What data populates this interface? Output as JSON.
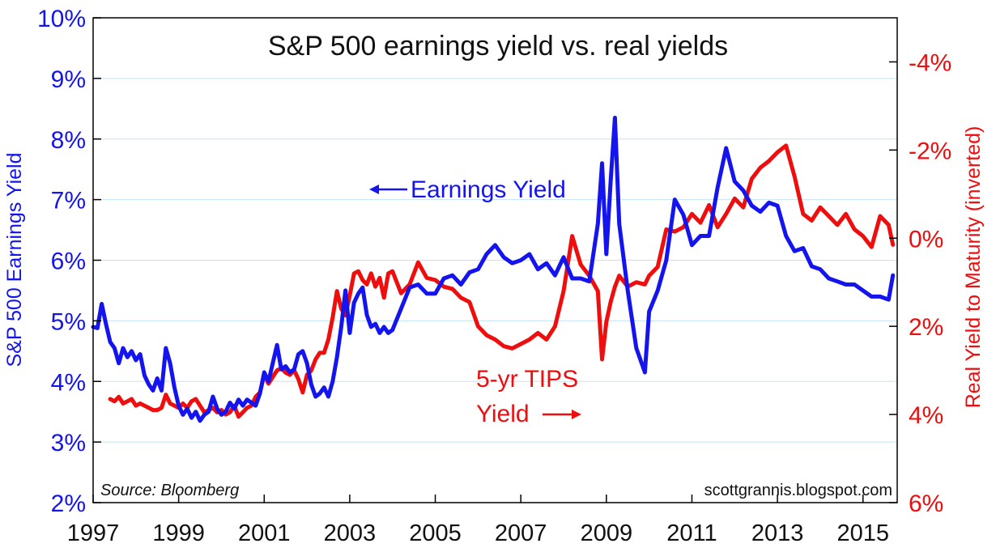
{
  "chart_data": {
    "type": "line",
    "title": "S&P 500 earnings yield vs. real yields",
    "xlabel": "",
    "ylabel": "S&P 500 Earnings Yield",
    "ylabel_right": "Real Yield to Maturity (inverted)",
    "xlim": [
      1997.0,
      2015.8
    ],
    "ylim": [
      2,
      10
    ],
    "ylim_right": [
      6,
      -5
    ],
    "right_axis_inverted": true,
    "x_ticks": [
      "1997",
      "1999",
      "2001",
      "2003",
      "2005",
      "2007",
      "2009",
      "2011",
      "2013",
      "2015"
    ],
    "y_ticks": [
      "2%",
      "3%",
      "4%",
      "5%",
      "6%",
      "7%",
      "8%",
      "9%",
      "10%"
    ],
    "y_ticks_right": [
      "6%",
      "4%",
      "2%",
      "0%",
      "-2%",
      "-4%"
    ],
    "source": "Source: Bloomberg",
    "watermark": "scottgrannis.blogspot.com",
    "colors": {
      "earnings": "#1414ee",
      "tips": "#ee0e0e",
      "grid": "#c5e3f2",
      "frame": "#000000"
    },
    "series": [
      {
        "name": "Earnings Yield",
        "axis": "left",
        "label": "Earnings Yield",
        "x": [
          1997.0,
          1997.1,
          1997.2,
          1997.3,
          1997.4,
          1997.5,
          1997.6,
          1997.7,
          1997.8,
          1997.9,
          1998.0,
          1998.1,
          1998.2,
          1998.3,
          1998.4,
          1998.5,
          1998.6,
          1998.7,
          1998.8,
          1998.9,
          1999.0,
          1999.1,
          1999.2,
          1999.3,
          1999.4,
          1999.5,
          1999.6,
          1999.7,
          1999.8,
          1999.9,
          2000.0,
          2000.1,
          2000.2,
          2000.3,
          2000.4,
          2000.5,
          2000.6,
          2000.7,
          2000.8,
          2000.9,
          2001.0,
          2001.1,
          2001.2,
          2001.3,
          2001.4,
          2001.5,
          2001.6,
          2001.7,
          2001.8,
          2001.9,
          2002.0,
          2002.1,
          2002.2,
          2002.3,
          2002.4,
          2002.5,
          2002.6,
          2002.7,
          2002.8,
          2002.9,
          2003.0,
          2003.1,
          2003.2,
          2003.3,
          2003.4,
          2003.5,
          2003.6,
          2003.7,
          2003.8,
          2003.9,
          2004.0,
          2004.2,
          2004.4,
          2004.6,
          2004.8,
          2005.0,
          2005.2,
          2005.4,
          2005.6,
          2005.8,
          2006.0,
          2006.2,
          2006.4,
          2006.6,
          2006.8,
          2007.0,
          2007.2,
          2007.4,
          2007.6,
          2007.8,
          2008.0,
          2008.2,
          2008.4,
          2008.6,
          2008.8,
          2008.9,
          2009.0,
          2009.1,
          2009.2,
          2009.3,
          2009.5,
          2009.7,
          2009.9,
          2010.0,
          2010.2,
          2010.4,
          2010.6,
          2010.8,
          2011.0,
          2011.2,
          2011.4,
          2011.6,
          2011.8,
          2012.0,
          2012.2,
          2012.4,
          2012.6,
          2012.8,
          2013.0,
          2013.2,
          2013.4,
          2013.6,
          2013.8,
          2014.0,
          2014.2,
          2014.4,
          2014.6,
          2014.8,
          2015.0,
          2015.2,
          2015.4,
          2015.6,
          2015.7
        ],
        "values": [
          4.9,
          4.88,
          5.28,
          4.95,
          4.65,
          4.55,
          4.3,
          4.55,
          4.4,
          4.5,
          4.35,
          4.45,
          4.1,
          3.95,
          3.85,
          4.05,
          3.85,
          4.55,
          4.3,
          3.9,
          3.6,
          3.45,
          3.55,
          3.4,
          3.5,
          3.35,
          3.45,
          3.5,
          3.75,
          3.55,
          3.45,
          3.5,
          3.65,
          3.55,
          3.7,
          3.6,
          3.7,
          3.65,
          3.6,
          3.8,
          4.15,
          4.0,
          4.3,
          4.6,
          4.2,
          4.25,
          4.15,
          4.2,
          4.45,
          4.5,
          4.3,
          3.95,
          3.75,
          3.8,
          3.9,
          3.75,
          4.0,
          4.4,
          4.9,
          5.5,
          4.8,
          5.3,
          5.45,
          5.55,
          5.1,
          4.9,
          4.95,
          4.8,
          4.9,
          4.8,
          4.85,
          5.2,
          5.55,
          5.6,
          5.45,
          5.45,
          5.7,
          5.75,
          5.6,
          5.8,
          5.85,
          6.1,
          6.25,
          6.05,
          5.95,
          6.0,
          6.1,
          5.85,
          5.95,
          5.75,
          6.05,
          5.7,
          5.7,
          5.65,
          6.6,
          7.6,
          6.1,
          7.3,
          8.35,
          6.6,
          5.5,
          4.55,
          4.15,
          5.15,
          5.5,
          6.0,
          7.0,
          6.75,
          6.25,
          6.4,
          6.4,
          7.2,
          7.85,
          7.3,
          7.15,
          6.9,
          6.8,
          6.95,
          6.9,
          6.4,
          6.15,
          6.2,
          5.9,
          5.85,
          5.7,
          5.65,
          5.6,
          5.6,
          5.5,
          5.4,
          5.4,
          5.35,
          5.75
        ]
      },
      {
        "name": "5-yr TIPS Yield",
        "axis": "right",
        "label": "5-yr TIPS",
        "label2": "Yield",
        "x": [
          1997.4,
          1997.5,
          1997.6,
          1997.7,
          1997.8,
          1997.9,
          1998.0,
          1998.1,
          1998.2,
          1998.3,
          1998.4,
          1998.5,
          1998.6,
          1998.7,
          1998.8,
          1998.9,
          1999.0,
          1999.1,
          1999.2,
          1999.3,
          1999.4,
          1999.5,
          1999.6,
          1999.7,
          1999.8,
          1999.9,
          2000.0,
          2000.1,
          2000.2,
          2000.3,
          2000.4,
          2000.5,
          2000.6,
          2000.7,
          2000.8,
          2000.9,
          2001.0,
          2001.1,
          2001.2,
          2001.3,
          2001.4,
          2001.5,
          2001.6,
          2001.7,
          2001.8,
          2001.9,
          2002.0,
          2002.1,
          2002.2,
          2002.3,
          2002.4,
          2002.5,
          2002.6,
          2002.7,
          2002.8,
          2002.9,
          2003.0,
          2003.1,
          2003.2,
          2003.3,
          2003.4,
          2003.5,
          2003.6,
          2003.7,
          2003.8,
          2003.9,
          2004.0,
          2004.2,
          2004.4,
          2004.6,
          2004.8,
          2005.0,
          2005.2,
          2005.4,
          2005.6,
          2005.8,
          2006.0,
          2006.2,
          2006.4,
          2006.6,
          2006.8,
          2007.0,
          2007.2,
          2007.4,
          2007.6,
          2007.8,
          2008.0,
          2008.2,
          2008.4,
          2008.6,
          2008.8,
          2008.9,
          2009.0,
          2009.1,
          2009.2,
          2009.3,
          2009.5,
          2009.7,
          2009.9,
          2010.0,
          2010.2,
          2010.4,
          2010.6,
          2010.8,
          2011.0,
          2011.2,
          2011.4,
          2011.6,
          2011.8,
          2012.0,
          2012.2,
          2012.4,
          2012.6,
          2012.8,
          2013.0,
          2013.2,
          2013.4,
          2013.6,
          2013.8,
          2014.0,
          2014.2,
          2014.4,
          2014.6,
          2014.8,
          2015.0,
          2015.2,
          2015.4,
          2015.6,
          2015.7
        ],
        "values": [
          3.65,
          3.7,
          3.6,
          3.75,
          3.7,
          3.65,
          3.8,
          3.75,
          3.8,
          3.85,
          3.9,
          3.9,
          3.85,
          3.55,
          3.75,
          3.8,
          3.85,
          3.75,
          3.85,
          3.7,
          3.65,
          3.8,
          3.95,
          3.9,
          3.85,
          3.95,
          3.9,
          4.0,
          3.95,
          3.8,
          4.05,
          3.95,
          3.85,
          3.8,
          3.6,
          3.5,
          3.1,
          3.3,
          3.15,
          3.0,
          2.95,
          3.05,
          3.1,
          3.0,
          3.2,
          3.5,
          3.1,
          3.0,
          2.75,
          2.6,
          2.6,
          2.3,
          1.8,
          1.2,
          1.6,
          1.75,
          1.3,
          0.8,
          0.75,
          0.95,
          1.05,
          0.8,
          1.1,
          0.9,
          1.35,
          0.8,
          0.75,
          1.25,
          1.05,
          0.55,
          0.9,
          0.95,
          1.1,
          1.15,
          1.35,
          1.45,
          2.0,
          2.2,
          2.3,
          2.45,
          2.5,
          2.4,
          2.3,
          2.15,
          2.3,
          2.0,
          1.2,
          -0.05,
          0.6,
          0.85,
          1.2,
          2.75,
          1.9,
          1.45,
          1.1,
          0.85,
          1.1,
          1.0,
          1.05,
          0.85,
          0.65,
          -0.2,
          -0.15,
          -0.25,
          -0.55,
          -0.35,
          -0.75,
          -0.25,
          -0.55,
          -0.9,
          -0.7,
          -1.35,
          -1.6,
          -1.75,
          -1.95,
          -2.1,
          -1.4,
          -0.55,
          -0.4,
          -0.7,
          -0.5,
          -0.3,
          -0.55,
          -0.2,
          -0.05,
          0.2,
          -0.5,
          -0.3,
          0.15
        ]
      }
    ]
  }
}
